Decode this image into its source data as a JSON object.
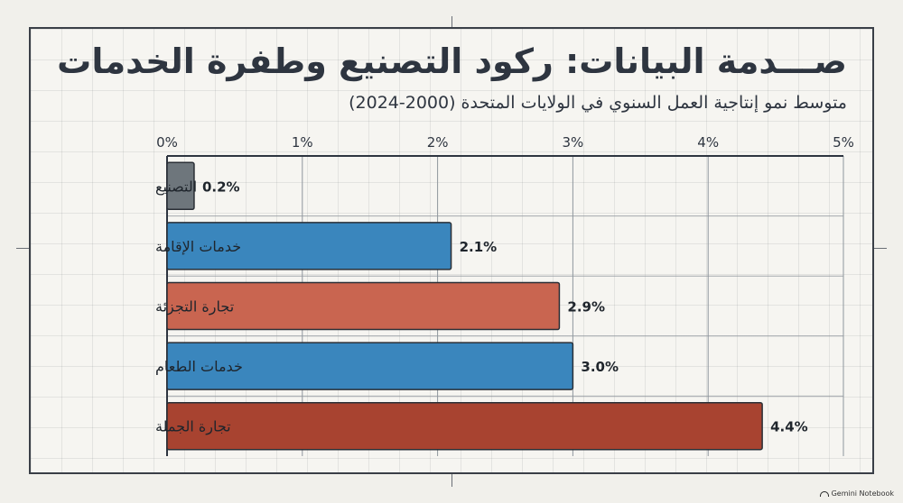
{
  "header": {
    "title": "صـــدمة البيانات: ركود التصنيع وطفرة الخدمات",
    "subtitle": "متوسط نمو إنتاجية العمل السنوي في الولايات المتحدة (2000-2024)"
  },
  "footer": {
    "brand": "Gemini Notebook"
  },
  "colors": {
    "gray": "#6e767c",
    "blue": "#3a86bd",
    "coral": "#c96550",
    "brick": "#a84330",
    "axis": "#2e3540",
    "grid": "#8f969d"
  },
  "chart_data": {
    "type": "bar",
    "orientation": "horizontal",
    "title": "صـــدمة البيانات: ركود التصنيع وطفرة الخدمات",
    "subtitle": "متوسط نمو إنتاجية العمل السنوي في الولايات المتحدة (2000-2024)",
    "xlabel": "",
    "ylabel": "",
    "xlim": [
      0,
      5
    ],
    "xticks": [
      0,
      1,
      2,
      3,
      4,
      5
    ],
    "xtick_labels": [
      "0%",
      "1%",
      "2%",
      "3%",
      "4%",
      "5%"
    ],
    "grid": true,
    "categories": [
      "التصنيع",
      "خدمات الإقامة",
      "تجارة التجزئة",
      "خدمات الطعام",
      "تجارة الجملة"
    ],
    "values": [
      0.2,
      2.1,
      2.9,
      3.0,
      4.4
    ],
    "data_labels": [
      "0.2%",
      "2.1%",
      "2.9%",
      "3.0%",
      "4.4%"
    ],
    "bar_colors": [
      "#6e767c",
      "#3a86bd",
      "#c96550",
      "#3a86bd",
      "#a84330"
    ]
  }
}
